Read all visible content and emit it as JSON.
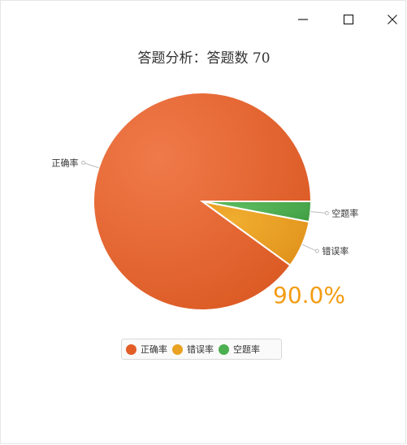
{
  "window": {
    "minimize_label": "—",
    "maximize_label": "☐",
    "close_label": "✕"
  },
  "chart_data": {
    "type": "pie",
    "title": "答题分析：答题数 70",
    "categories": [
      "正确率",
      "错误率",
      "空题率"
    ],
    "values": [
      90.0,
      7.0,
      3.0
    ],
    "colors": [
      "#e35d27",
      "#eaa223",
      "#4caf50"
    ],
    "highlight_label": "90.0%",
    "legend_position": "bottom"
  }
}
